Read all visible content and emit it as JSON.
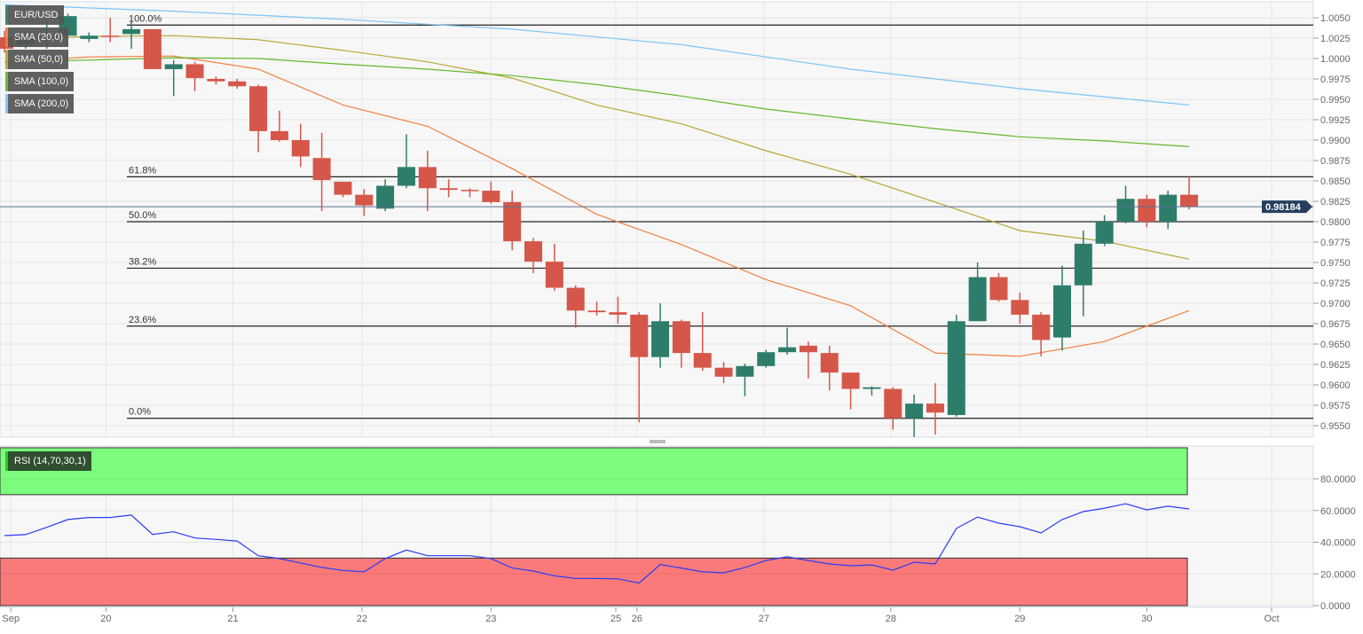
{
  "chart_data": {
    "type": "candlestick",
    "symbol": "EUR/USD",
    "legend": [
      "EUR/USD",
      "SMA (20,0)",
      "SMA (50,0)",
      "SMA (100,0)",
      "SMA (200,0)"
    ],
    "colors": {
      "up": "#2e7d6b",
      "down": "#d5574a",
      "sma20": "#f0803c",
      "sma50": "#b8a634",
      "sma100": "#62b82a",
      "sma200": "#7cc4f5",
      "rsi": "#2a3cf5",
      "overbought": "#7cfc7c",
      "oversold": "#fa7a7a",
      "last_price_tag": "#263f5e"
    },
    "ylim": [
      0.9535,
      1.0068
    ],
    "yticks": [
      "1.0050",
      "1.0025",
      "1.0000",
      "0.9975",
      "0.9950",
      "0.9925",
      "0.9900",
      "0.9875",
      "0.9850",
      "0.9825",
      "0.9800",
      "0.9775",
      "0.9750",
      "0.9725",
      "0.9700",
      "0.9675",
      "0.9650",
      "0.9625",
      "0.9600",
      "0.9575",
      "0.9550"
    ],
    "last_price": "0.98184",
    "xlabels": [
      "Sep",
      "20",
      "21",
      "22",
      "23",
      "25",
      "26",
      "27",
      "28",
      "29",
      "30",
      "Oct"
    ],
    "candles_ohlc": [
      [
        1.0026,
        1.0034,
        1.0007,
        1.0012
      ],
      [
        1.0017,
        1.0034,
        1.0012,
        1.0028
      ],
      [
        1.0023,
        1.0045,
        1.0012,
        1.0026
      ],
      [
        1.0028,
        1.0055,
        1.0028,
        1.0052
      ],
      [
        1.0024,
        1.0032,
        1.002,
        1.0028
      ],
      [
        1.0028,
        1.005,
        1.002,
        1.0027
      ],
      [
        1.003,
        1.0045,
        1.0012,
        1.0036
      ],
      [
        1.0036,
        1.0036,
        0.9987,
        0.9987
      ],
      [
        0.9987,
        0.9998,
        0.9954,
        0.9993
      ],
      [
        0.9993,
        0.9996,
        0.996,
        0.9976
      ],
      [
        0.9975,
        0.9978,
        0.9968,
        0.9972
      ],
      [
        0.9972,
        0.9975,
        0.9963,
        0.9966
      ],
      [
        0.9966,
        0.9968,
        0.9885,
        0.9911
      ],
      [
        0.9911,
        0.9936,
        0.9898,
        0.99
      ],
      [
        0.99,
        0.992,
        0.9867,
        0.988
      ],
      [
        0.9878,
        0.9909,
        0.9813,
        0.9851
      ],
      [
        0.9849,
        0.9849,
        0.983,
        0.9833
      ],
      [
        0.9833,
        0.984,
        0.9807,
        0.982
      ],
      [
        0.9816,
        0.9852,
        0.9813,
        0.9844
      ],
      [
        0.9844,
        0.9907,
        0.9841,
        0.9867
      ],
      [
        0.9867,
        0.9887,
        0.9813,
        0.9841
      ],
      [
        0.9841,
        0.9852,
        0.983,
        0.9839
      ],
      [
        0.9839,
        0.9841,
        0.983,
        0.9838
      ],
      [
        0.9838,
        0.9849,
        0.9822,
        0.9824
      ],
      [
        0.9824,
        0.9838,
        0.9765,
        0.9776
      ],
      [
        0.9776,
        0.978,
        0.9737,
        0.9751
      ],
      [
        0.9751,
        0.9773,
        0.9715,
        0.9719
      ],
      [
        0.9719,
        0.9722,
        0.967,
        0.9691
      ],
      [
        0.9691,
        0.9702,
        0.9685,
        0.9689
      ],
      [
        0.9689,
        0.9708,
        0.9675,
        0.9686
      ],
      [
        0.9686,
        0.9689,
        0.9554,
        0.9634
      ],
      [
        0.9634,
        0.97,
        0.9621,
        0.9678
      ],
      [
        0.9678,
        0.968,
        0.9621,
        0.9639
      ],
      [
        0.9639,
        0.9689,
        0.9617,
        0.9621
      ],
      [
        0.9621,
        0.9628,
        0.9602,
        0.961
      ],
      [
        0.961,
        0.9626,
        0.9586,
        0.9623
      ],
      [
        0.9623,
        0.9643,
        0.9621,
        0.964
      ],
      [
        0.964,
        0.967,
        0.9637,
        0.9646
      ],
      [
        0.9648,
        0.9653,
        0.9608,
        0.964
      ],
      [
        0.9639,
        0.9648,
        0.9593,
        0.9615
      ],
      [
        0.9615,
        0.9615,
        0.957,
        0.9595
      ],
      [
        0.9595,
        0.9598,
        0.9587,
        0.9597
      ],
      [
        0.9595,
        0.9597,
        0.9545,
        0.9559
      ],
      [
        0.9559,
        0.9588,
        0.9536,
        0.9577
      ],
      [
        0.9577,
        0.9602,
        0.9539,
        0.9566
      ],
      [
        0.9563,
        0.9686,
        0.9561,
        0.9678
      ],
      [
        0.9678,
        0.975,
        0.9678,
        0.9732
      ],
      [
        0.9732,
        0.9737,
        0.9702,
        0.9704
      ],
      [
        0.9704,
        0.9713,
        0.9675,
        0.9686
      ],
      [
        0.9686,
        0.9689,
        0.9635,
        0.9655
      ],
      [
        0.9658,
        0.9746,
        0.9642,
        0.9722
      ],
      [
        0.9722,
        0.9789,
        0.9684,
        0.9773
      ],
      [
        0.9773,
        0.9808,
        0.977,
        0.98
      ],
      [
        0.98,
        0.9844,
        0.9798,
        0.9828
      ],
      [
        0.9828,
        0.9833,
        0.9793,
        0.98
      ],
      [
        0.98,
        0.9838,
        0.9791,
        0.9833
      ],
      [
        0.9833,
        0.9855,
        0.9815,
        0.98184
      ]
    ],
    "sma": [
      {
        "name": "SMA (20,0)",
        "every": 4,
        "values": [
          0.9996,
          1.0002,
          1.0003,
          0.9987,
          0.9943,
          0.9917,
          0.9865,
          0.9809,
          0.9772,
          0.9729,
          0.9697,
          0.9639,
          0.9635,
          0.9653,
          0.9691
        ]
      },
      {
        "name": "SMA (50,0)",
        "every": 4,
        "values": [
          1.0024,
          1.0027,
          1.0028,
          1.0023,
          1.001,
          0.9996,
          0.9976,
          0.9943,
          0.992,
          0.9887,
          0.9858,
          0.9824,
          0.9789,
          0.9776,
          0.9754
        ]
      },
      {
        "name": "SMA (100,0)",
        "every": 4,
        "values": [
          0.9996,
          0.9998,
          1.0001,
          1.0,
          0.9993,
          0.9987,
          0.9979,
          0.9968,
          0.9954,
          0.9938,
          0.9926,
          0.9914,
          0.9904,
          0.9899,
          0.9892
        ]
      },
      {
        "name": "SMA (200,0)",
        "every": 8,
        "values": [
          1.0066,
          1.0058,
          1.0048,
          1.0036,
          1.0017,
          0.9987,
          0.9963,
          0.9943
        ]
      }
    ],
    "fibonacci": [
      {
        "label": "100.0%",
        "price": 1.0041
      },
      {
        "label": "61.8%",
        "price": 0.9855
      },
      {
        "label": "50.0%",
        "price": 0.98
      },
      {
        "label": "38.2%",
        "price": 0.9743
      },
      {
        "label": "23.6%",
        "price": 0.9672
      },
      {
        "label": "0.0%",
        "price": 0.9559
      }
    ],
    "rsi": {
      "label": "RSI (14,70,30,1)",
      "overbought": 70,
      "oversold": 30,
      "ylim": [
        0,
        100
      ],
      "yticks": [
        "80.0000",
        "60.0000",
        "40.0000",
        "20.0000",
        "0.0000"
      ],
      "values": [
        44.2,
        44.8,
        49.4,
        54.3,
        55.6,
        55.6,
        57.1,
        44.9,
        46.6,
        42.7,
        41.8,
        40.8,
        31.5,
        29.7,
        26.9,
        24.1,
        22.2,
        21.3,
        29.7,
        35.1,
        31.5,
        31.5,
        31.5,
        29.7,
        23.7,
        21.8,
        18.8,
        17.2,
        17.1,
        16.9,
        14.2,
        25.9,
        23.7,
        21.3,
        20.7,
        24.0,
        28.5,
        30.8,
        28.5,
        26.3,
        25.2,
        25.7,
        22.4,
        27.4,
        26.3,
        48.7,
        55.9,
        52.0,
        49.8,
        45.9,
        54.3,
        59.3,
        61.5,
        64.3,
        60.4,
        62.7,
        61.0
      ]
    }
  }
}
